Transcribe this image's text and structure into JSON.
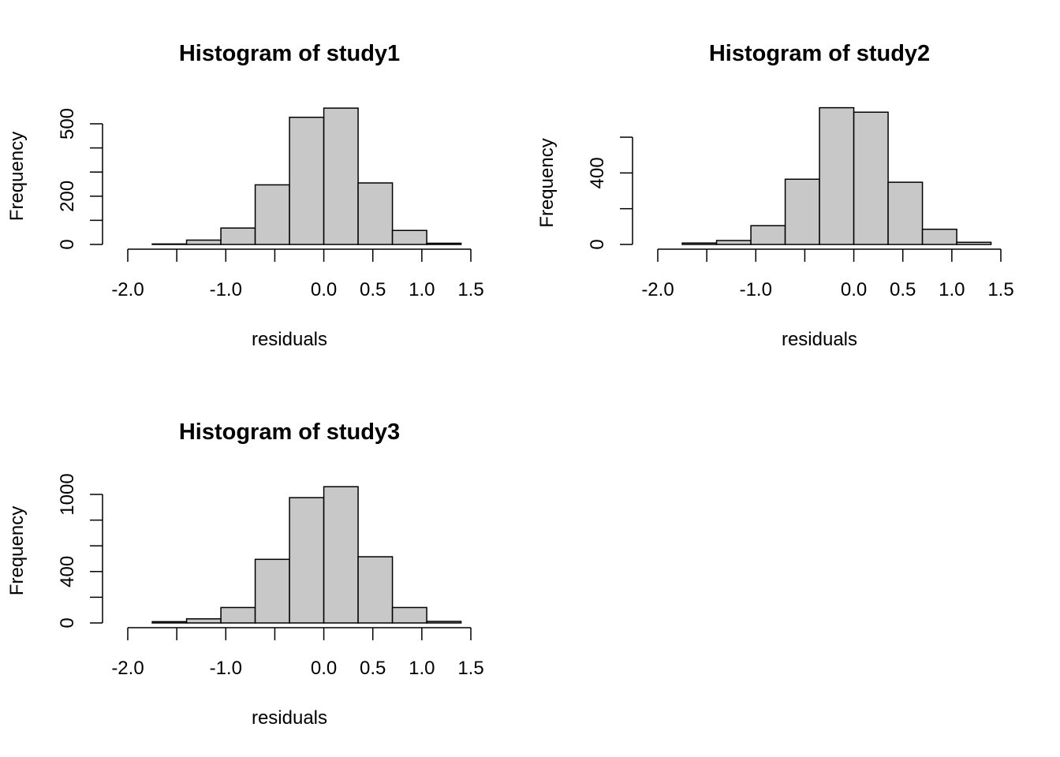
{
  "chart_data": [
    {
      "type": "bar",
      "subtype": "histogram",
      "title": "Histogram of study1",
      "xlabel": "residuals",
      "ylabel": "Frequency",
      "bin_edges": [
        -1.75,
        -1.4,
        -1.05,
        -0.7,
        -0.35,
        0.0,
        0.35,
        0.7,
        1.05,
        1.4
      ],
      "values": [
        2,
        18,
        68,
        247,
        527,
        565,
        255,
        58,
        5
      ],
      "xlim": [
        -2.0,
        1.5
      ],
      "ylim": [
        0,
        500
      ],
      "x_ticks": [
        -2.0,
        -1.5,
        -1.0,
        -0.5,
        0.0,
        0.5,
        1.0,
        1.5
      ],
      "x_tick_labels": [
        "-2.0",
        "",
        "-1.0",
        "",
        "0.0",
        "0.5",
        "1.0",
        "1.5"
      ],
      "y_ticks": [
        0,
        100,
        200,
        300,
        400,
        500
      ],
      "y_tick_labels": [
        "0",
        "",
        "200",
        "",
        "",
        "500"
      ],
      "bar_color": "#c8c8c8",
      "grid": false
    },
    {
      "type": "bar",
      "subtype": "histogram",
      "title": "Histogram of study2",
      "xlabel": "residuals",
      "ylabel": "Frequency",
      "bin_edges": [
        -1.75,
        -1.4,
        -1.05,
        -0.7,
        -0.35,
        0.0,
        0.35,
        0.7,
        1.05,
        1.4
      ],
      "values": [
        8,
        22,
        105,
        365,
        765,
        740,
        348,
        85,
        12
      ],
      "xlim": [
        -2.0,
        1.5
      ],
      "ylim": [
        0,
        600
      ],
      "x_ticks": [
        -2.0,
        -1.5,
        -1.0,
        -0.5,
        0.0,
        0.5,
        1.0,
        1.5
      ],
      "x_tick_labels": [
        "-2.0",
        "",
        "-1.0",
        "",
        "0.0",
        "0.5",
        "1.0",
        "1.5"
      ],
      "y_ticks": [
        0,
        200,
        400,
        600
      ],
      "y_tick_labels": [
        "0",
        "",
        "400",
        ""
      ],
      "bar_color": "#c8c8c8",
      "grid": false
    },
    {
      "type": "bar",
      "subtype": "histogram",
      "title": "Histogram of study3",
      "xlabel": "residuals",
      "ylabel": "Frequency",
      "bin_edges": [
        -1.75,
        -1.4,
        -1.05,
        -0.7,
        -0.35,
        0.0,
        0.35,
        0.7,
        1.05,
        1.4
      ],
      "values": [
        10,
        32,
        120,
        495,
        975,
        1060,
        515,
        120,
        12
      ],
      "xlim": [
        -2.0,
        1.5
      ],
      "ylim": [
        0,
        1000
      ],
      "x_ticks": [
        -2.0,
        -1.5,
        -1.0,
        -0.5,
        0.0,
        0.5,
        1.0,
        1.5
      ],
      "x_tick_labels": [
        "-2.0",
        "",
        "-1.0",
        "",
        "0.0",
        "0.5",
        "1.0",
        "1.5"
      ],
      "y_ticks": [
        0,
        200,
        400,
        600,
        800,
        1000
      ],
      "y_tick_labels": [
        "0",
        "",
        "400",
        "",
        "",
        "1000"
      ],
      "bar_color": "#c8c8c8",
      "grid": false
    }
  ]
}
